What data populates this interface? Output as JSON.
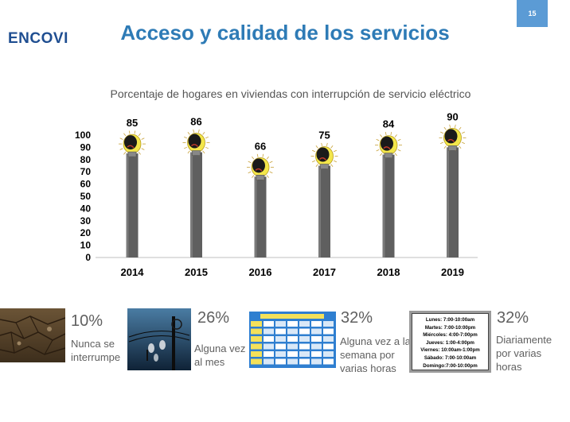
{
  "page_number": "15",
  "logo": {
    "text": "ENCOVI"
  },
  "slide_title": "Acceso y calidad de los servicios",
  "chart_data": {
    "type": "bar",
    "title": "Porcentaje  de hogares en viviendas con interrupción de servicio eléctrico",
    "categories": [
      "2014",
      "2015",
      "2016",
      "2017",
      "2018",
      "2019"
    ],
    "values": [
      85,
      86,
      66,
      75,
      84,
      90
    ],
    "ylim": [
      0,
      100
    ],
    "yticks": [
      0,
      10,
      20,
      30,
      40,
      50,
      60,
      70,
      80,
      90,
      100
    ],
    "xlabel": "",
    "ylabel": "",
    "grid": false,
    "bar_color": "#5f5f5f",
    "marker": "lightbulb-icon"
  },
  "categories": [
    {
      "percent": "10%",
      "label_lines": [
        "Nunca se",
        "interrumpe"
      ],
      "image": "dry-cracked-soil-photo"
    },
    {
      "percent": "26%",
      "label_lines": [
        "Alguna vez",
        "al mes"
      ],
      "image": "street-lamps-night-photo"
    },
    {
      "percent": "32%",
      "label_lines": [
        "Alguna vez a la",
        "semana por",
        "varias horas"
      ],
      "image": "power-cut-schedule-table"
    },
    {
      "percent": "32%",
      "label_lines": [
        "Diariamente",
        "por varias",
        "horas"
      ],
      "image": "rationing-schedule-card",
      "schedule": [
        "Lunes: 7:00-10:00am",
        "Martes: 7:00-10:00pm",
        "Miércoles: 4:00-7:00pm",
        "Jueves: 1:00-4:00pm",
        "Viernes: 10:00am-1:00pm",
        "Sábado: 7:00-10:00am",
        "Domingo:7:00-10:00pm"
      ]
    }
  ],
  "colors": {
    "title": "#2e7bb6",
    "page_badge": "#5b9bd5",
    "bulb_yellow": "#f3e64a",
    "bulb_dark": "#1a1a1a"
  }
}
